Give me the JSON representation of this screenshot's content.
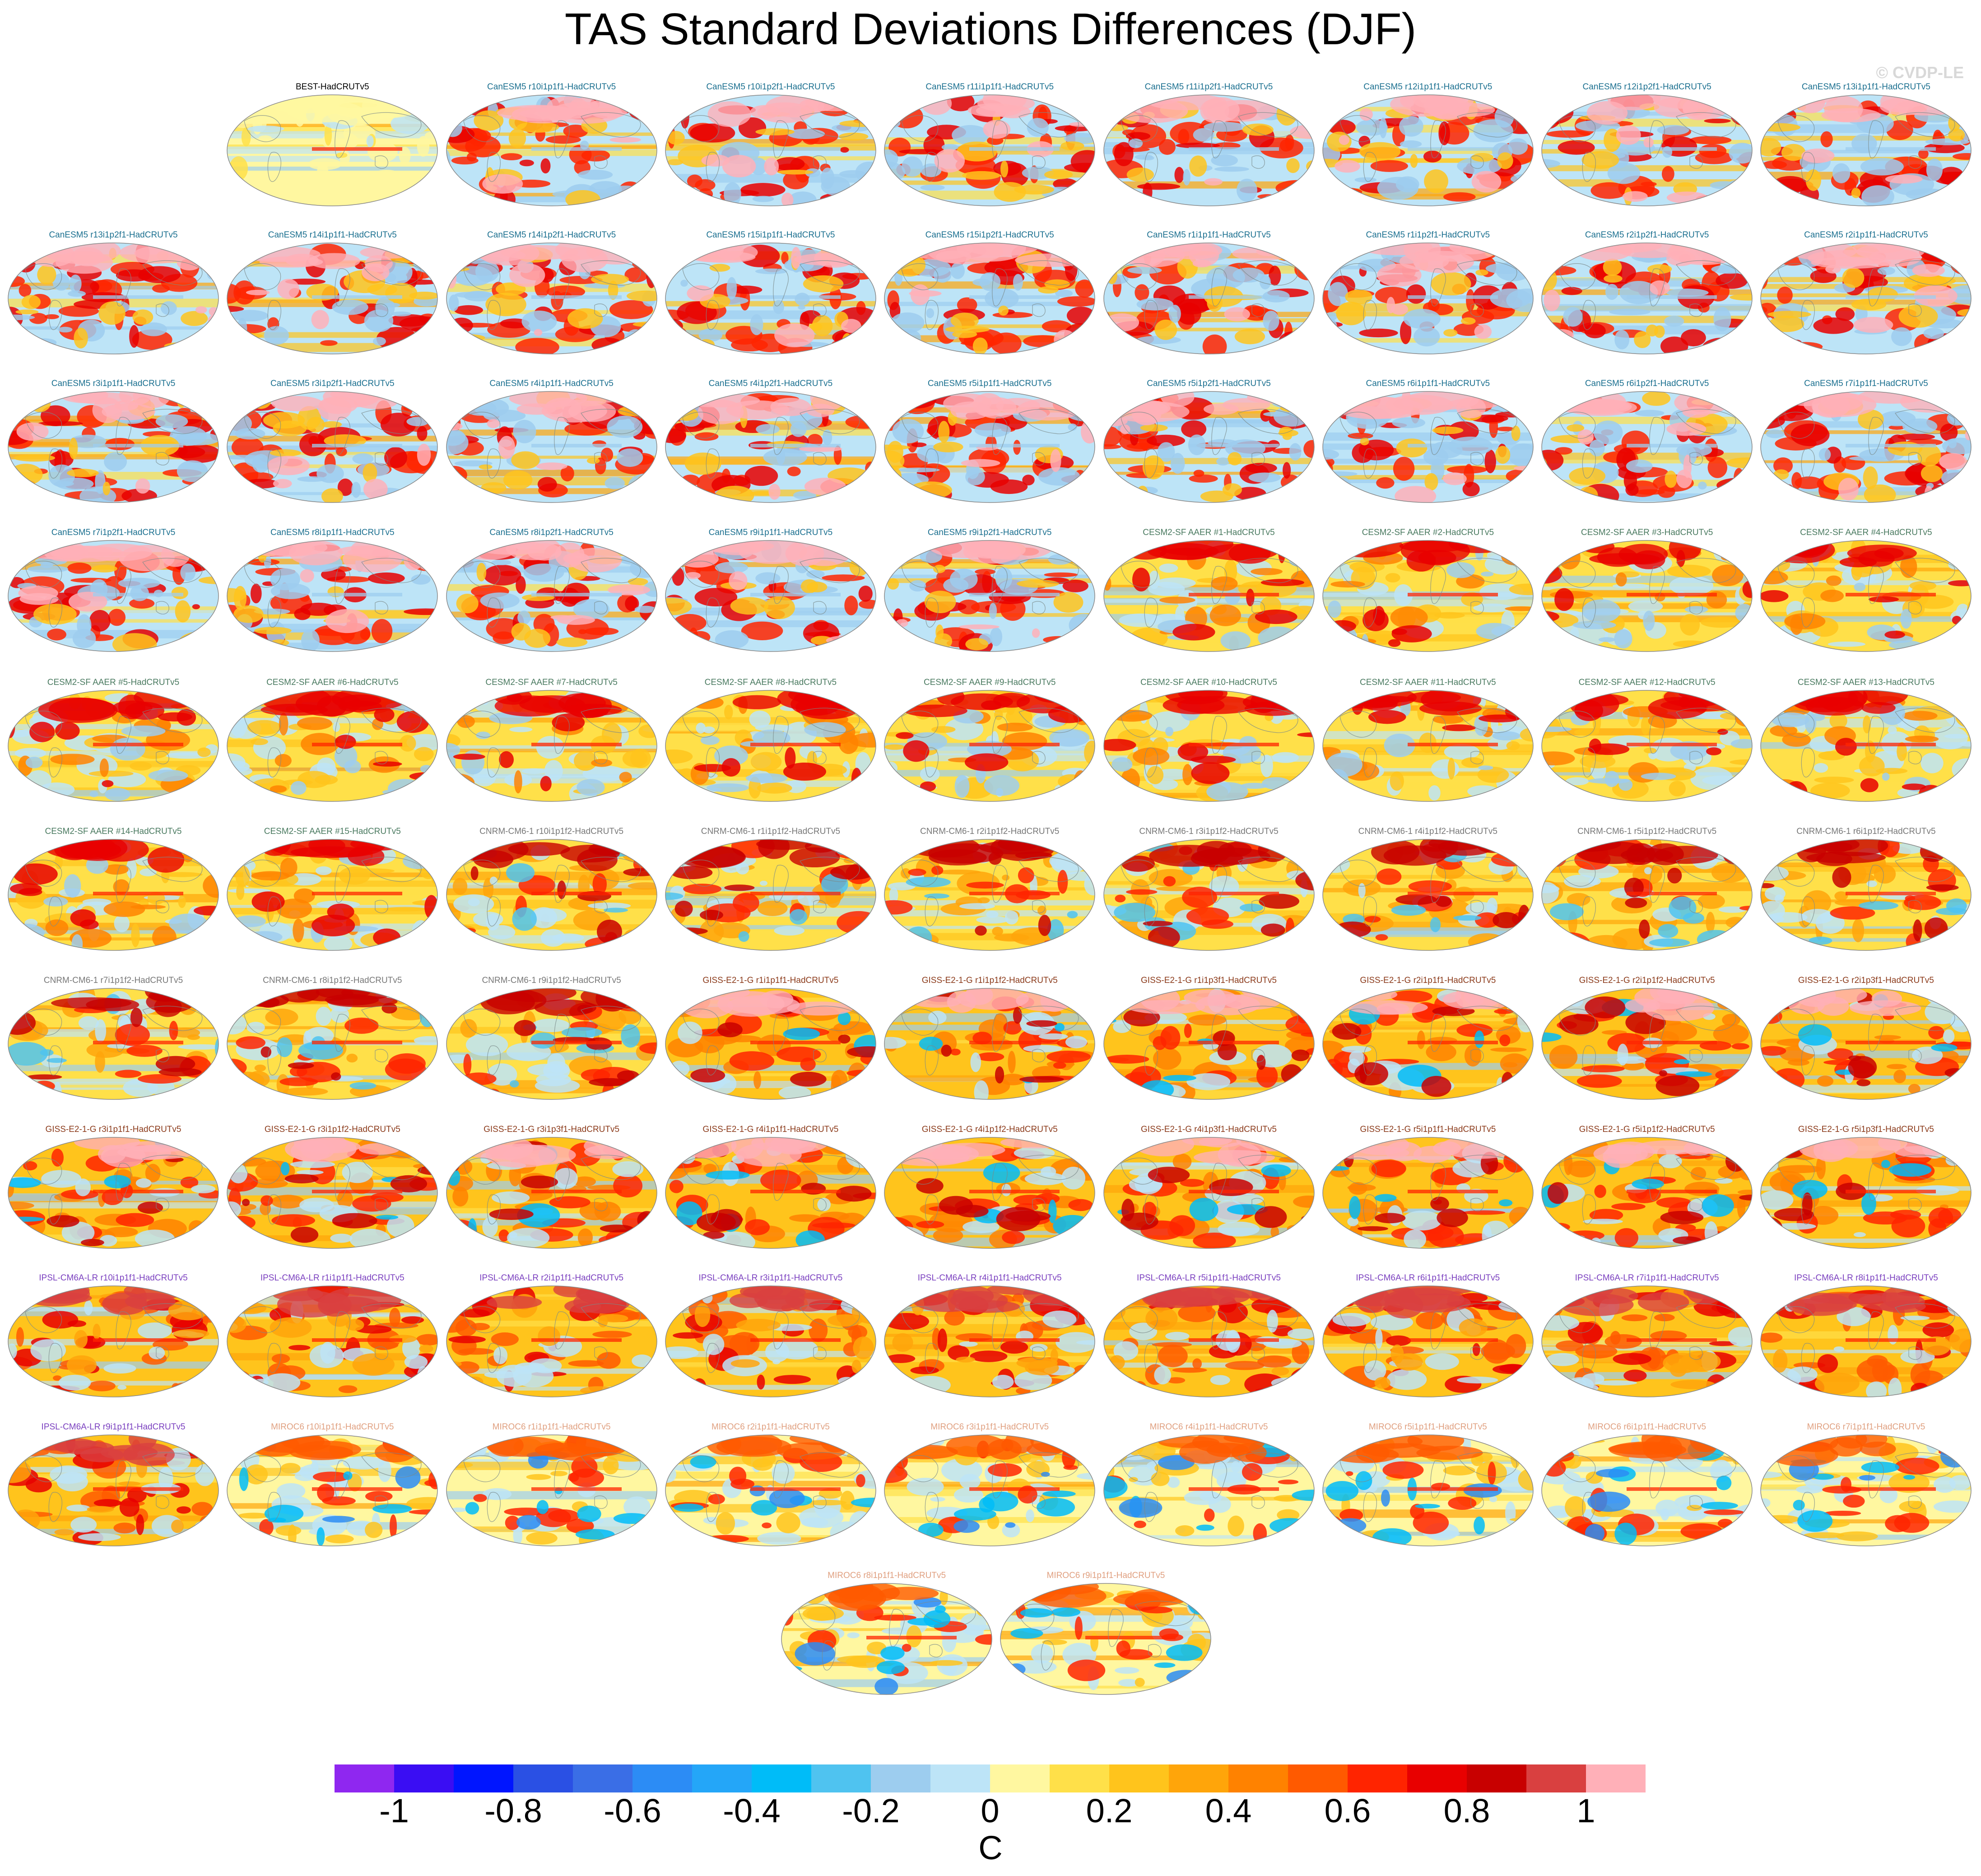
{
  "title": "TAS Standard Deviations Differences (DJF)",
  "watermark": "© CVDP-LE",
  "chart_data": {
    "type": "map-grid",
    "title": "TAS Standard Deviations Differences (DJF)",
    "units": "C",
    "colorbar": {
      "ticks": [
        "-1",
        "-0.8",
        "-0.6",
        "-0.4",
        "-0.2",
        "0",
        "0.2",
        "0.4",
        "0.6",
        "0.8",
        "1"
      ],
      "colors": [
        "#8f27f0",
        "#3a0df3",
        "#0015ff",
        "#2a50e4",
        "#3a6ee6",
        "#2c8cf5",
        "#24a6f8",
        "#00bcf8",
        "#4fc3f0",
        "#9dcdef",
        "#bde4f7",
        "#fff7a0",
        "#ffe049",
        "#ffc41c",
        "#ffa50a",
        "#ff8200",
        "#ff5a00",
        "#ff2400",
        "#e80000",
        "#c80000",
        "#d94040",
        "#ffb0b8"
      ]
    },
    "panels": [
      {
        "label": "BEST-HadCRUTv5",
        "group": "obs",
        "color": "#000000"
      },
      {
        "label": "CanESM5 r10i1p1f1-HadCRUTv5",
        "group": "CanESM5",
        "color": "#1a6f8f"
      },
      {
        "label": "CanESM5 r10i1p2f1-HadCRUTv5",
        "group": "CanESM5",
        "color": "#1a6f8f"
      },
      {
        "label": "CanESM5 r11i1p1f1-HadCRUTv5",
        "group": "CanESM5",
        "color": "#1a6f8f"
      },
      {
        "label": "CanESM5 r11i1p2f1-HadCRUTv5",
        "group": "CanESM5",
        "color": "#1a6f8f"
      },
      {
        "label": "CanESM5 r12i1p1f1-HadCRUTv5",
        "group": "CanESM5",
        "color": "#1a6f8f"
      },
      {
        "label": "CanESM5 r12i1p2f1-HadCRUTv5",
        "group": "CanESM5",
        "color": "#1a6f8f"
      },
      {
        "label": "CanESM5 r13i1p1f1-HadCRUTv5",
        "group": "CanESM5",
        "color": "#1a6f8f"
      },
      {
        "label": "CanESM5 r13i1p2f1-HadCRUTv5",
        "group": "CanESM5",
        "color": "#1a6f8f"
      },
      {
        "label": "CanESM5 r14i1p1f1-HadCRUTv5",
        "group": "CanESM5",
        "color": "#1a6f8f"
      },
      {
        "label": "CanESM5 r14i1p2f1-HadCRUTv5",
        "group": "CanESM5",
        "color": "#1a6f8f"
      },
      {
        "label": "CanESM5 r15i1p1f1-HadCRUTv5",
        "group": "CanESM5",
        "color": "#1a6f8f"
      },
      {
        "label": "CanESM5 r15i1p2f1-HadCRUTv5",
        "group": "CanESM5",
        "color": "#1a6f8f"
      },
      {
        "label": "CanESM5 r1i1p1f1-HadCRUTv5",
        "group": "CanESM5",
        "color": "#1a6f8f"
      },
      {
        "label": "CanESM5 r1i1p2f1-HadCRUTv5",
        "group": "CanESM5",
        "color": "#1a6f8f"
      },
      {
        "label": "CanESM5 r2i1p2f1-HadCRUTv5",
        "group": "CanESM5",
        "color": "#1a6f8f"
      },
      {
        "label": "CanESM5 r2i1p1f1-HadCRUTv5",
        "group": "CanESM5",
        "color": "#1a6f8f"
      },
      {
        "label": "CanESM5 r3i1p1f1-HadCRUTv5",
        "group": "CanESM5",
        "color": "#1a6f8f"
      },
      {
        "label": "CanESM5 r3i1p2f1-HadCRUTv5",
        "group": "CanESM5",
        "color": "#1a6f8f"
      },
      {
        "label": "CanESM5 r4i1p1f1-HadCRUTv5",
        "group": "CanESM5",
        "color": "#1a6f8f"
      },
      {
        "label": "CanESM5 r4i1p2f1-HadCRUTv5",
        "group": "CanESM5",
        "color": "#1a6f8f"
      },
      {
        "label": "CanESM5 r5i1p1f1-HadCRUTv5",
        "group": "CanESM5",
        "color": "#1a6f8f"
      },
      {
        "label": "CanESM5 r5i1p2f1-HadCRUTv5",
        "group": "CanESM5",
        "color": "#1a6f8f"
      },
      {
        "label": "CanESM5 r6i1p1f1-HadCRUTv5",
        "group": "CanESM5",
        "color": "#1a6f8f"
      },
      {
        "label": "CanESM5 r6i1p2f1-HadCRUTv5",
        "group": "CanESM5",
        "color": "#1a6f8f"
      },
      {
        "label": "CanESM5 r7i1p1f1-HadCRUTv5",
        "group": "CanESM5",
        "color": "#1a6f8f"
      },
      {
        "label": "CanESM5 r7i1p2f1-HadCRUTv5",
        "group": "CanESM5",
        "color": "#1a6f8f"
      },
      {
        "label": "CanESM5 r8i1p1f1-HadCRUTv5",
        "group": "CanESM5",
        "color": "#1a6f8f"
      },
      {
        "label": "CanESM5 r8i1p2f1-HadCRUTv5",
        "group": "CanESM5",
        "color": "#1a6f8f"
      },
      {
        "label": "CanESM5 r9i1p1f1-HadCRUTv5",
        "group": "CanESM5",
        "color": "#1a6f8f"
      },
      {
        "label": "CanESM5 r9i1p2f1-HadCRUTv5",
        "group": "CanESM5",
        "color": "#1a6f8f"
      },
      {
        "label": "CESM2-SF AAER #1-HadCRUTv5",
        "group": "CESM2",
        "color": "#4a7a60"
      },
      {
        "label": "CESM2-SF AAER #2-HadCRUTv5",
        "group": "CESM2",
        "color": "#4a7a60"
      },
      {
        "label": "CESM2-SF AAER #3-HadCRUTv5",
        "group": "CESM2",
        "color": "#4a7a60"
      },
      {
        "label": "CESM2-SF AAER #4-HadCRUTv5",
        "group": "CESM2",
        "color": "#4a7a60"
      },
      {
        "label": "CESM2-SF AAER #5-HadCRUTv5",
        "group": "CESM2",
        "color": "#4a7a60"
      },
      {
        "label": "CESM2-SF AAER #6-HadCRUTv5",
        "group": "CESM2",
        "color": "#4a7a60"
      },
      {
        "label": "CESM2-SF AAER #7-HadCRUTv5",
        "group": "CESM2",
        "color": "#4a7a60"
      },
      {
        "label": "CESM2-SF AAER #8-HadCRUTv5",
        "group": "CESM2",
        "color": "#4a7a60"
      },
      {
        "label": "CESM2-SF AAER #9-HadCRUTv5",
        "group": "CESM2",
        "color": "#4a7a60"
      },
      {
        "label": "CESM2-SF AAER #10-HadCRUTv5",
        "group": "CESM2",
        "color": "#4a7a60"
      },
      {
        "label": "CESM2-SF AAER #11-HadCRUTv5",
        "group": "CESM2",
        "color": "#4a7a60"
      },
      {
        "label": "CESM2-SF AAER #12-HadCRUTv5",
        "group": "CESM2",
        "color": "#4a7a60"
      },
      {
        "label": "CESM2-SF AAER #13-HadCRUTv5",
        "group": "CESM2",
        "color": "#4a7a60"
      },
      {
        "label": "CESM2-SF AAER #14-HadCRUTv5",
        "group": "CESM2",
        "color": "#4a7a60"
      },
      {
        "label": "CESM2-SF AAER #15-HadCRUTv5",
        "group": "CESM2",
        "color": "#4a7a60"
      },
      {
        "label": "CNRM-CM6-1 r10i1p1f2-HadCRUTv5",
        "group": "CNRM",
        "color": "#777777"
      },
      {
        "label": "CNRM-CM6-1 r1i1p1f2-HadCRUTv5",
        "group": "CNRM",
        "color": "#777777"
      },
      {
        "label": "CNRM-CM6-1 r2i1p1f2-HadCRUTv5",
        "group": "CNRM",
        "color": "#777777"
      },
      {
        "label": "CNRM-CM6-1 r3i1p1f2-HadCRUTv5",
        "group": "CNRM",
        "color": "#777777"
      },
      {
        "label": "CNRM-CM6-1 r4i1p1f2-HadCRUTv5",
        "group": "CNRM",
        "color": "#777777"
      },
      {
        "label": "CNRM-CM6-1 r5i1p1f2-HadCRUTv5",
        "group": "CNRM",
        "color": "#777777"
      },
      {
        "label": "CNRM-CM6-1 r6i1p1f2-HadCRUTv5",
        "group": "CNRM",
        "color": "#777777"
      },
      {
        "label": "CNRM-CM6-1 r7i1p1f2-HadCRUTv5",
        "group": "CNRM",
        "color": "#777777"
      },
      {
        "label": "CNRM-CM6-1 r8i1p1f2-HadCRUTv5",
        "group": "CNRM",
        "color": "#777777"
      },
      {
        "label": "CNRM-CM6-1 r9i1p1f2-HadCRUTv5",
        "group": "CNRM",
        "color": "#777777"
      },
      {
        "label": "GISS-E2-1-G r1i1p1f1-HadCRUTv5",
        "group": "GISS",
        "color": "#8b3a1a"
      },
      {
        "label": "GISS-E2-1-G r1i1p1f2-HadCRUTv5",
        "group": "GISS",
        "color": "#8b3a1a"
      },
      {
        "label": "GISS-E2-1-G r1i1p3f1-HadCRUTv5",
        "group": "GISS",
        "color": "#8b3a1a"
      },
      {
        "label": "GISS-E2-1-G r2i1p1f1-HadCRUTv5",
        "group": "GISS",
        "color": "#8b3a1a"
      },
      {
        "label": "GISS-E2-1-G r2i1p1f2-HadCRUTv5",
        "group": "GISS",
        "color": "#8b3a1a"
      },
      {
        "label": "GISS-E2-1-G r2i1p3f1-HadCRUTv5",
        "group": "GISS",
        "color": "#8b3a1a"
      },
      {
        "label": "GISS-E2-1-G r3i1p1f1-HadCRUTv5",
        "group": "GISS",
        "color": "#8b3a1a"
      },
      {
        "label": "GISS-E2-1-G r3i1p1f2-HadCRUTv5",
        "group": "GISS",
        "color": "#8b3a1a"
      },
      {
        "label": "GISS-E2-1-G r3i1p3f1-HadCRUTv5",
        "group": "GISS",
        "color": "#8b3a1a"
      },
      {
        "label": "GISS-E2-1-G r4i1p1f1-HadCRUTv5",
        "group": "GISS",
        "color": "#8b3a1a"
      },
      {
        "label": "GISS-E2-1-G r4i1p1f2-HadCRUTv5",
        "group": "GISS",
        "color": "#8b3a1a"
      },
      {
        "label": "GISS-E2-1-G r4i1p3f1-HadCRUTv5",
        "group": "GISS",
        "color": "#8b3a1a"
      },
      {
        "label": "GISS-E2-1-G r5i1p1f1-HadCRUTv5",
        "group": "GISS",
        "color": "#8b3a1a"
      },
      {
        "label": "GISS-E2-1-G r5i1p1f2-HadCRUTv5",
        "group": "GISS",
        "color": "#8b3a1a"
      },
      {
        "label": "GISS-E2-1-G r5i1p3f1-HadCRUTv5",
        "group": "GISS",
        "color": "#8b3a1a"
      },
      {
        "label": "IPSL-CM6A-LR r10i1p1f1-HadCRUTv5",
        "group": "IPSL",
        "color": "#7a3fbf"
      },
      {
        "label": "IPSL-CM6A-LR r1i1p1f1-HadCRUTv5",
        "group": "IPSL",
        "color": "#7a3fbf"
      },
      {
        "label": "IPSL-CM6A-LR r2i1p1f1-HadCRUTv5",
        "group": "IPSL",
        "color": "#7a3fbf"
      },
      {
        "label": "IPSL-CM6A-LR r3i1p1f1-HadCRUTv5",
        "group": "IPSL",
        "color": "#7a3fbf"
      },
      {
        "label": "IPSL-CM6A-LR r4i1p1f1-HadCRUTv5",
        "group": "IPSL",
        "color": "#7a3fbf"
      },
      {
        "label": "IPSL-CM6A-LR r5i1p1f1-HadCRUTv5",
        "group": "IPSL",
        "color": "#7a3fbf"
      },
      {
        "label": "IPSL-CM6A-LR r6i1p1f1-HadCRUTv5",
        "group": "IPSL",
        "color": "#7a3fbf"
      },
      {
        "label": "IPSL-CM6A-LR r7i1p1f1-HadCRUTv5",
        "group": "IPSL",
        "color": "#7a3fbf"
      },
      {
        "label": "IPSL-CM6A-LR r8i1p1f1-HadCRUTv5",
        "group": "IPSL",
        "color": "#7a3fbf"
      },
      {
        "label": "IPSL-CM6A-LR r9i1p1f1-HadCRUTv5",
        "group": "IPSL",
        "color": "#7a3fbf"
      },
      {
        "label": "MIROC6 r10i1p1f1-HadCRUTv5",
        "group": "MIROC6",
        "color": "#e0a080"
      },
      {
        "label": "MIROC6 r1i1p1f1-HadCRUTv5",
        "group": "MIROC6",
        "color": "#e0a080"
      },
      {
        "label": "MIROC6 r2i1p1f1-HadCRUTv5",
        "group": "MIROC6",
        "color": "#e0a080"
      },
      {
        "label": "MIROC6 r3i1p1f1-HadCRUTv5",
        "group": "MIROC6",
        "color": "#e0a080"
      },
      {
        "label": "MIROC6 r4i1p1f1-HadCRUTv5",
        "group": "MIROC6",
        "color": "#e0a080"
      },
      {
        "label": "MIROC6 r5i1p1f1-HadCRUTv5",
        "group": "MIROC6",
        "color": "#e0a080"
      },
      {
        "label": "MIROC6 r6i1p1f1-HadCRUTv5",
        "group": "MIROC6",
        "color": "#e0a080"
      },
      {
        "label": "MIROC6 r7i1p1f1-HadCRUTv5",
        "group": "MIROC6",
        "color": "#e0a080"
      },
      {
        "label": "MIROC6 r8i1p1f1-HadCRUTv5",
        "group": "MIROC6",
        "color": "#e0a080"
      },
      {
        "label": "MIROC6 r9i1p1f1-HadCRUTv5",
        "group": "MIROC6",
        "color": "#e0a080"
      }
    ]
  }
}
